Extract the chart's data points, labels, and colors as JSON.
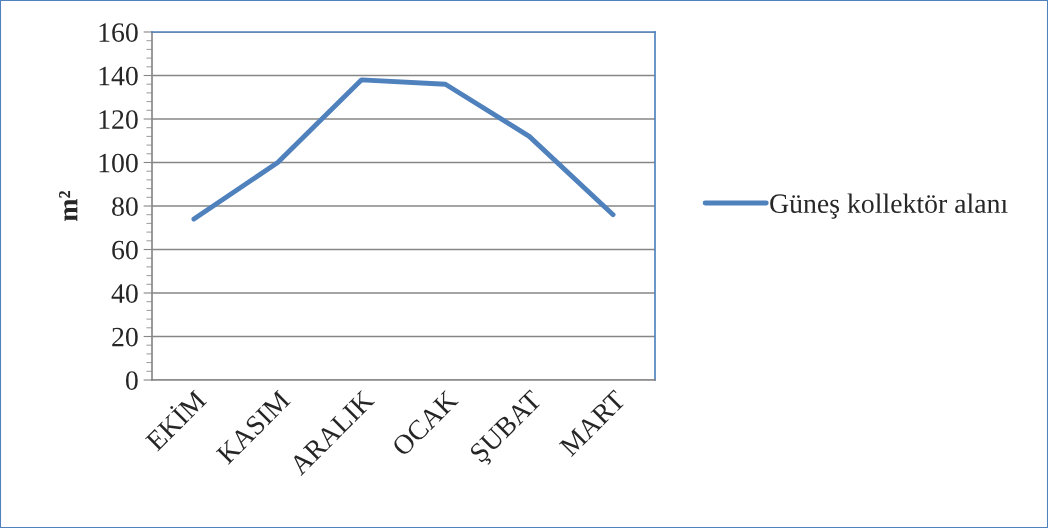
{
  "chart_data": {
    "type": "line",
    "ylabel": "m²",
    "categories": [
      "EKİM",
      "KASIM",
      "ARALIK",
      "OCAK",
      "ŞUBAT",
      "MART"
    ],
    "series": [
      {
        "name": "Güneş kollektör alanı",
        "color": "#4f81bd",
        "values": [
          74,
          100,
          138,
          136,
          112,
          76
        ]
      }
    ],
    "ylim": [
      0,
      160
    ],
    "yticks": [
      0,
      20,
      40,
      60,
      80,
      100,
      120,
      140,
      160
    ],
    "grid": "y",
    "legend": "right",
    "marker": "none",
    "line_style": "solid"
  }
}
